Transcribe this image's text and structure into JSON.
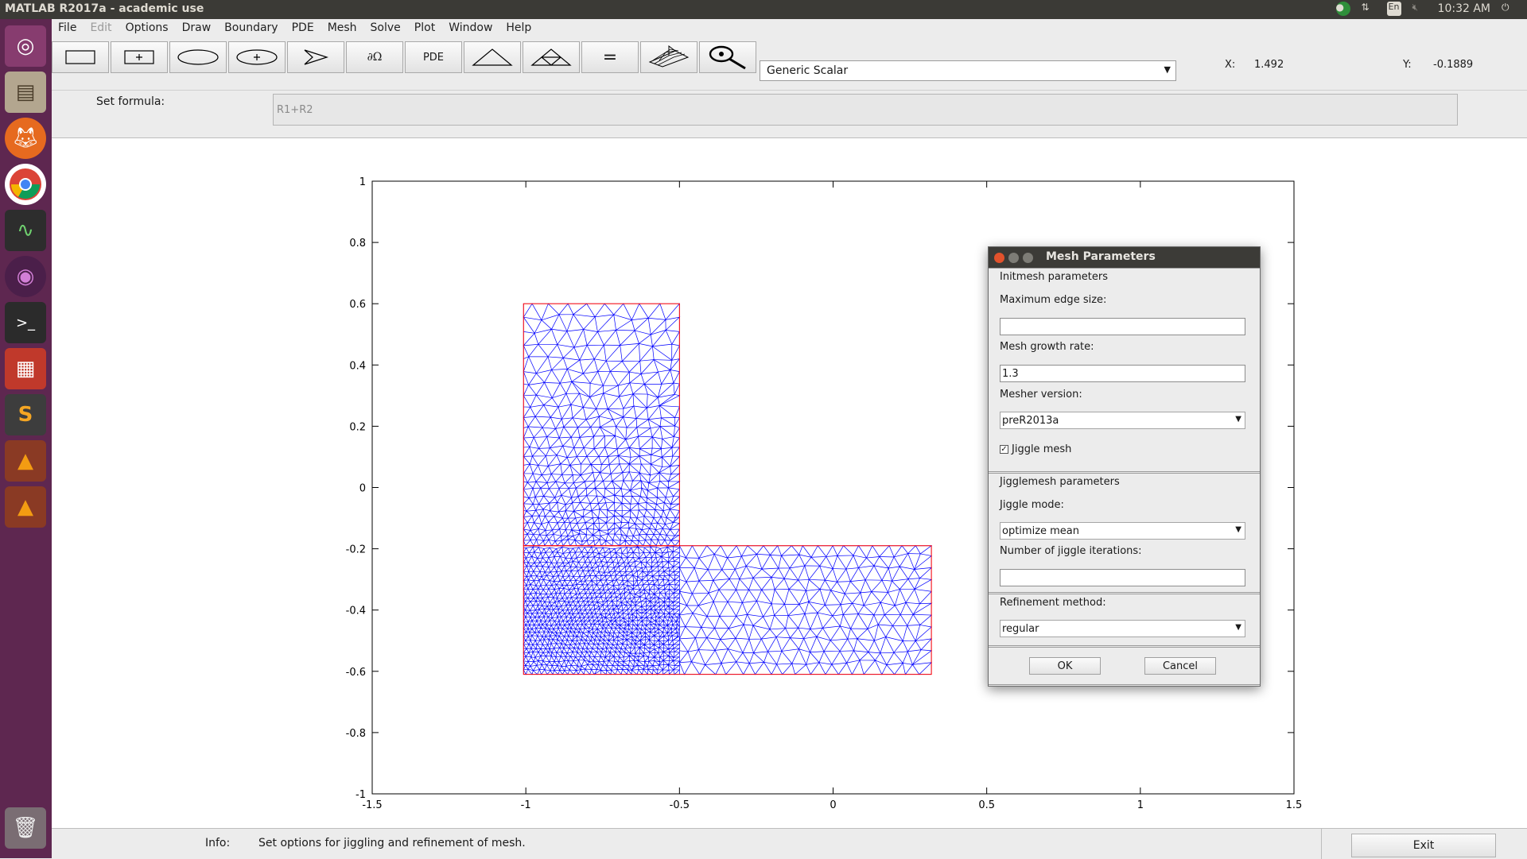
{
  "os": {
    "window_title": "MATLAB R2017a - academic use",
    "keyboard_layout": "En",
    "clock": "10:32 AM"
  },
  "menu": [
    "File",
    "Edit",
    "Options",
    "Draw",
    "Boundary",
    "PDE",
    "Mesh",
    "Solve",
    "Plot",
    "Window",
    "Help"
  ],
  "toolbar": {
    "buttons": [
      {
        "name": "rectangle-tool",
        "glyph": ""
      },
      {
        "name": "rectangle-centered-tool",
        "glyph": "+"
      },
      {
        "name": "ellipse-tool",
        "glyph": ""
      },
      {
        "name": "ellipse-centered-tool",
        "glyph": "+"
      },
      {
        "name": "polygon-tool",
        "glyph": ""
      },
      {
        "name": "boundary-mode-button",
        "glyph": "∂Ω"
      },
      {
        "name": "pde-button",
        "glyph": "PDE"
      },
      {
        "name": "init-mesh-button",
        "glyph": ""
      },
      {
        "name": "refine-mesh-button",
        "glyph": ""
      },
      {
        "name": "solve-button",
        "glyph": "="
      },
      {
        "name": "plot-button",
        "glyph": ""
      },
      {
        "name": "zoom-button",
        "glyph": ""
      }
    ],
    "application_mode": "Generic Scalar",
    "x_label": "X:",
    "x_value": "1.492",
    "y_label": "Y:",
    "y_value": "-0.1889"
  },
  "formula": {
    "label": "Set formula:",
    "value": "R1+R2"
  },
  "plot": {
    "x_ticks": [
      "-1.5",
      "-1",
      "-0.5",
      "0",
      "0.5",
      "1",
      "1.5"
    ],
    "y_ticks": [
      "1",
      "0.8",
      "0.6",
      "0.4",
      "0.2",
      "0",
      "-0.2",
      "-0.4",
      "-0.6",
      "-0.8",
      "-1"
    ],
    "xlim": [
      -1.5,
      1.5
    ],
    "ylim": [
      -1,
      1
    ],
    "boundary_color": "#ff0000",
    "mesh_color": "#0000ff"
  },
  "dialog": {
    "title": "Mesh Parameters",
    "initmesh_header": "Initmesh parameters",
    "max_edge_label": "Maximum edge size:",
    "max_edge_value": "",
    "growth_label": "Mesh growth rate:",
    "growth_value": "1.3",
    "version_label": "Mesher version:",
    "version_value": "preR2013a",
    "jiggle_checkbox_label": "Jiggle mesh",
    "jiggle_checked": true,
    "jigglemesh_header": "Jigglemesh parameters",
    "jiggle_mode_label": "Jiggle mode:",
    "jiggle_mode_value": "optimize mean",
    "iterations_label": "Number of jiggle iterations:",
    "iterations_value": "",
    "refinement_label": "Refinement method:",
    "refinement_value": "regular",
    "ok": "OK",
    "cancel": "Cancel"
  },
  "info": {
    "label": "Info:",
    "text": "Set options for jiggling and refinement of mesh.",
    "exit": "Exit"
  }
}
